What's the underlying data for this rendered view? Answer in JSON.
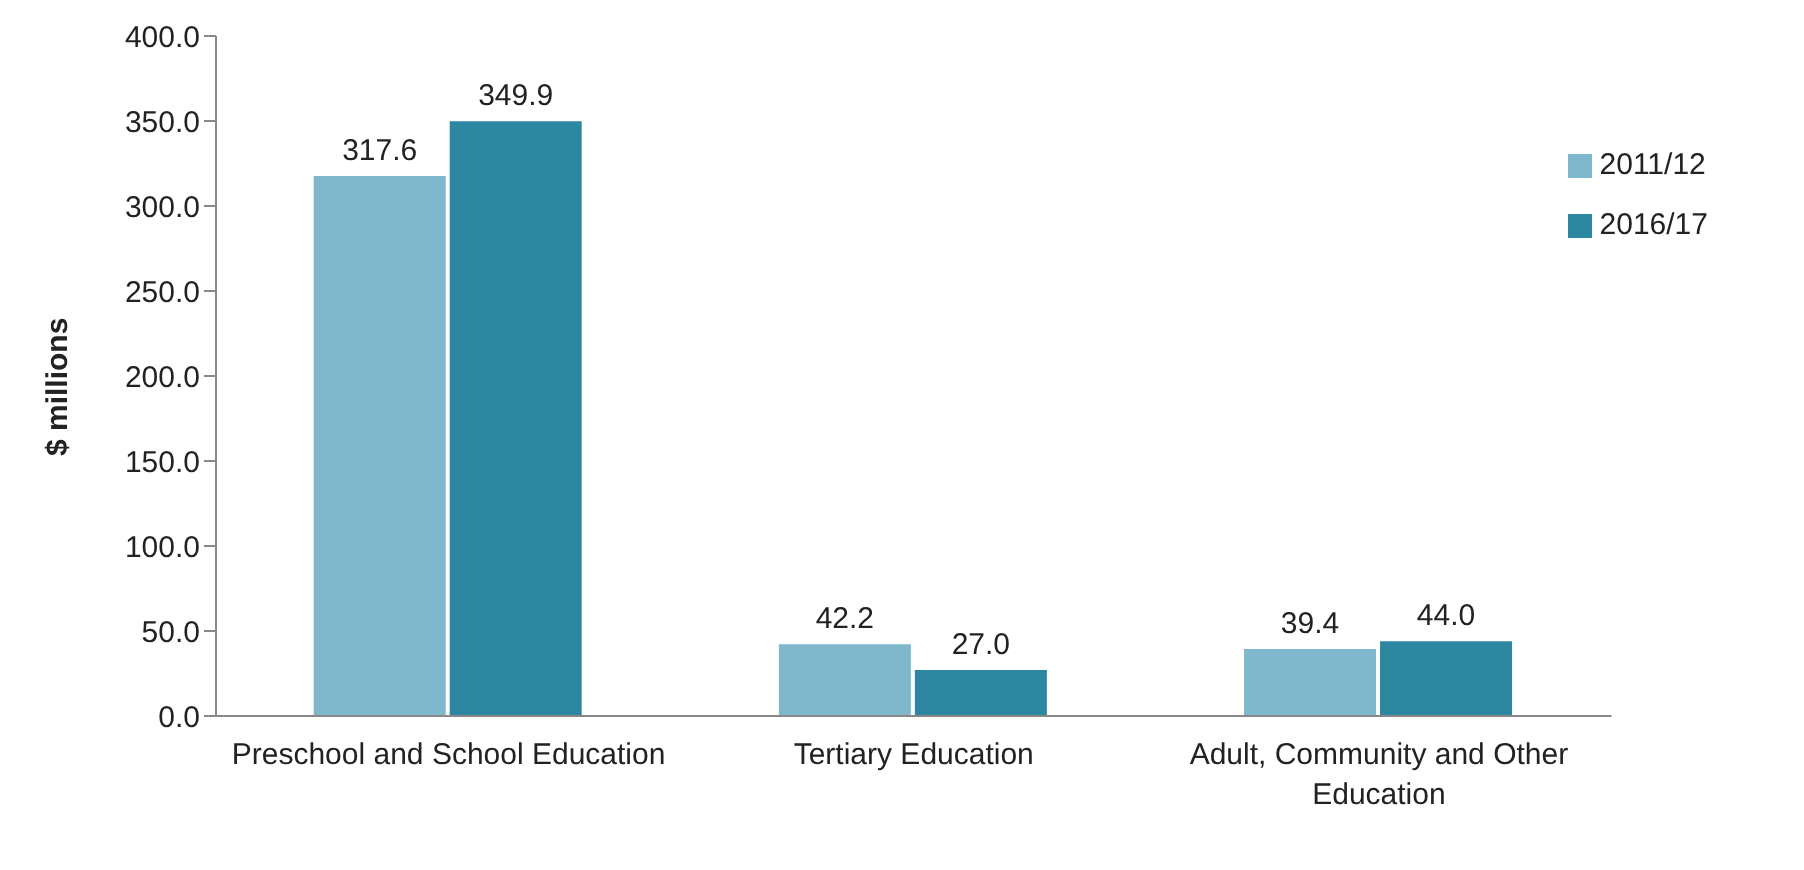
{
  "chart_data": {
    "type": "bar",
    "ylabel": "$ millions",
    "categories": [
      "Preschool and School Education",
      "Tertiary Education",
      "Adult, Community and Other Education"
    ],
    "series": [
      {
        "name": "2011/12",
        "color": "#7fb8cc",
        "values": [
          317.6,
          42.2,
          39.4
        ],
        "value_labels": [
          "317.6",
          "42.2",
          "39.4"
        ]
      },
      {
        "name": "2016/17",
        "color": "#2e87a0",
        "values": [
          349.9,
          27.0,
          44.0
        ],
        "value_labels": [
          "349.9",
          "27.0",
          "44.0"
        ]
      }
    ],
    "ylim": [
      0,
      400
    ],
    "yticks": [
      {
        "value": 0,
        "label": "0.0"
      },
      {
        "value": 50,
        "label": "50.0"
      },
      {
        "value": 100,
        "label": "100.0"
      },
      {
        "value": 150,
        "label": "150.0"
      },
      {
        "value": 200,
        "label": "200.0"
      },
      {
        "value": 250,
        "label": "250.0"
      },
      {
        "value": 300,
        "label": "300.0"
      },
      {
        "value": 350,
        "label": "350.0"
      },
      {
        "value": 400,
        "label": "400.0"
      }
    ],
    "legend": "top right",
    "grid": false
  }
}
